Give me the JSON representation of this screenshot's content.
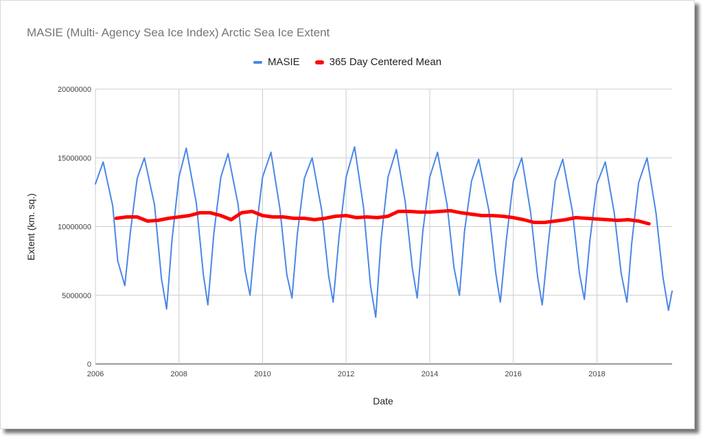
{
  "chart_data": {
    "type": "line",
    "title": "MASIE (Multi- Agency Sea Ice Index) Arctic Sea Ice Extent",
    "xlabel": "Date",
    "ylabel": "Extent (km. sq.)",
    "xlim": [
      "2006-01-01",
      "2019-10-20"
    ],
    "ylim": [
      0,
      20000000
    ],
    "x_ticks": [
      "2006",
      "2008",
      "2010",
      "2012",
      "2014",
      "2016",
      "2018"
    ],
    "y_ticks": [
      "0",
      "5000000",
      "10000000",
      "15000000",
      "20000000"
    ],
    "grid": true,
    "legend_position": "top",
    "series": [
      {
        "name": "MASIE",
        "color": "#4a86e8",
        "x": [
          "2006-01-01",
          "2006-03-10",
          "2006-06-01",
          "2006-07-15",
          "2006-09-15",
          "2006-11-01",
          "2007-01-01",
          "2007-03-05",
          "2007-06-01",
          "2007-08-01",
          "2007-09-15",
          "2007-11-01",
          "2008-01-01",
          "2008-03-05",
          "2008-06-01",
          "2008-08-01",
          "2008-09-10",
          "2008-11-01",
          "2009-01-01",
          "2009-03-05",
          "2009-06-01",
          "2009-08-01",
          "2009-09-13",
          "2009-11-01",
          "2010-01-01",
          "2010-03-15",
          "2010-06-01",
          "2010-08-01",
          "2010-09-15",
          "2010-11-01",
          "2011-01-01",
          "2011-03-10",
          "2011-06-01",
          "2011-08-01",
          "2011-09-10",
          "2011-11-01",
          "2012-01-01",
          "2012-03-15",
          "2012-06-01",
          "2012-08-01",
          "2012-09-16",
          "2012-11-01",
          "2013-01-01",
          "2013-03-15",
          "2013-06-01",
          "2013-08-01",
          "2013-09-13",
          "2013-11-01",
          "2014-01-01",
          "2014-03-10",
          "2014-06-01",
          "2014-08-01",
          "2014-09-17",
          "2014-11-01",
          "2015-01-01",
          "2015-03-05",
          "2015-06-01",
          "2015-08-01",
          "2015-09-10",
          "2015-11-01",
          "2016-01-01",
          "2016-03-15",
          "2016-06-01",
          "2016-08-01",
          "2016-09-10",
          "2016-11-01",
          "2017-01-01",
          "2017-03-08",
          "2017-06-01",
          "2017-08-01",
          "2017-09-13",
          "2017-11-01",
          "2018-01-01",
          "2018-03-15",
          "2018-06-01",
          "2018-08-01",
          "2018-09-20",
          "2018-11-01",
          "2019-01-01",
          "2019-03-15",
          "2019-06-01",
          "2019-08-01",
          "2019-09-18",
          "2019-10-20"
        ],
        "values": [
          13100000,
          14700000,
          11500000,
          7500000,
          5700000,
          9500000,
          13500000,
          15000000,
          11600000,
          6200000,
          4000000,
          9000000,
          13600000,
          15700000,
          11700000,
          6500000,
          4300000,
          9500000,
          13600000,
          15300000,
          11600000,
          6800000,
          5000000,
          9400000,
          13600000,
          15400000,
          11300000,
          6500000,
          4800000,
          9500000,
          13500000,
          15000000,
          11200000,
          6400000,
          4500000,
          9300000,
          13600000,
          15800000,
          11400000,
          5700000,
          3400000,
          9000000,
          13600000,
          15600000,
          11800000,
          7000000,
          4800000,
          9600000,
          13600000,
          15400000,
          11600000,
          7000000,
          5000000,
          9700000,
          13300000,
          14900000,
          11200000,
          6600000,
          4500000,
          9000000,
          13300000,
          15000000,
          11000000,
          6300000,
          4300000,
          8700000,
          13300000,
          14900000,
          11100000,
          6600000,
          4700000,
          9000000,
          13100000,
          14700000,
          11000000,
          6600000,
          4500000,
          8800000,
          13200000,
          15000000,
          11000000,
          6300000,
          3900000,
          5300000
        ]
      },
      {
        "name": "365 Day Centered Mean",
        "color": "#ff0000",
        "x": [
          "2006-07-01",
          "2006-10-01",
          "2007-01-01",
          "2007-04-01",
          "2007-07-01",
          "2007-10-01",
          "2008-01-01",
          "2008-04-01",
          "2008-07-01",
          "2008-10-01",
          "2009-01-01",
          "2009-04-01",
          "2009-07-01",
          "2009-10-01",
          "2010-01-01",
          "2010-04-01",
          "2010-07-01",
          "2010-10-01",
          "2011-01-01",
          "2011-04-01",
          "2011-07-01",
          "2011-10-01",
          "2012-01-01",
          "2012-04-01",
          "2012-07-01",
          "2012-10-01",
          "2013-01-01",
          "2013-04-01",
          "2013-07-01",
          "2013-10-01",
          "2014-01-01",
          "2014-04-01",
          "2014-07-01",
          "2014-10-01",
          "2015-01-01",
          "2015-04-01",
          "2015-07-01",
          "2015-10-01",
          "2016-01-01",
          "2016-04-01",
          "2016-07-01",
          "2016-10-01",
          "2017-01-01",
          "2017-04-01",
          "2017-07-01",
          "2017-10-01",
          "2018-01-01",
          "2018-04-01",
          "2018-07-01",
          "2018-10-01",
          "2019-01-01",
          "2019-04-01"
        ],
        "values": [
          10600000,
          10700000,
          10700000,
          10400000,
          10450000,
          10600000,
          10700000,
          10800000,
          11000000,
          11000000,
          10800000,
          10500000,
          11000000,
          11100000,
          10800000,
          10700000,
          10700000,
          10600000,
          10600000,
          10500000,
          10600000,
          10750000,
          10800000,
          10650000,
          10700000,
          10650000,
          10750000,
          11100000,
          11100000,
          11050000,
          11050000,
          11100000,
          11150000,
          11000000,
          10900000,
          10800000,
          10800000,
          10750000,
          10650000,
          10500000,
          10300000,
          10300000,
          10400000,
          10500000,
          10650000,
          10600000,
          10550000,
          10500000,
          10450000,
          10500000,
          10400000,
          10200000
        ]
      }
    ]
  }
}
